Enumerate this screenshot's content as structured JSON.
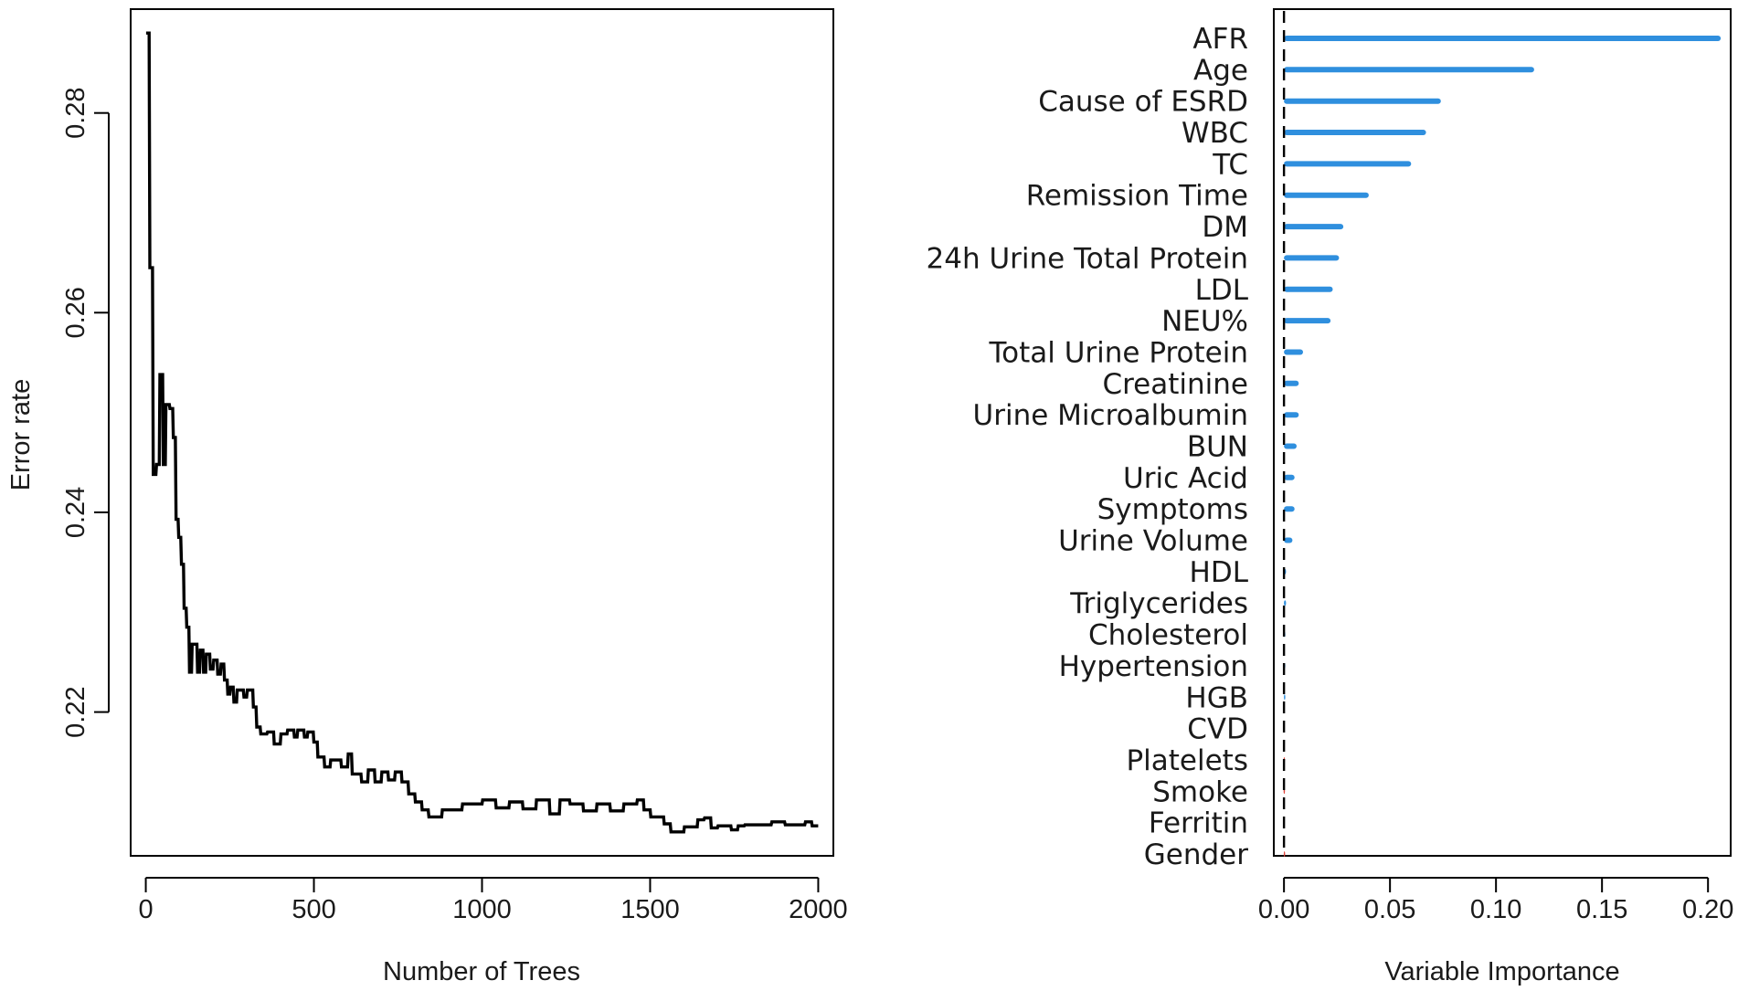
{
  "chart_data": [
    {
      "type": "line",
      "xlabel": "Number of Trees",
      "ylabel": "Error rate",
      "xlim": [
        -45,
        2045
      ],
      "ylim": [
        0.2056,
        0.2904
      ],
      "x_ticks": [
        "0",
        "500",
        "1000",
        "1500",
        "2000"
      ],
      "y_ticks": [
        "0.22",
        "0.24",
        "0.26",
        "0.28"
      ],
      "series": [
        {
          "color": "#000000",
          "points": [
            [
              1,
              0.288
            ],
            [
              10,
              0.288
            ],
            [
              12,
              0.2645
            ],
            [
              20,
              0.2645
            ],
            [
              22,
              0.2438
            ],
            [
              30,
              0.2438
            ],
            [
              32,
              0.2448
            ],
            [
              40,
              0.2448
            ],
            [
              42,
              0.2538
            ],
            [
              50,
              0.2538
            ],
            [
              52,
              0.2448
            ],
            [
              58,
              0.2448
            ],
            [
              60,
              0.2508
            ],
            [
              70,
              0.2508
            ],
            [
              72,
              0.2504
            ],
            [
              80,
              0.2504
            ],
            [
              82,
              0.2475
            ],
            [
              88,
              0.2475
            ],
            [
              90,
              0.2393
            ],
            [
              96,
              0.2393
            ],
            [
              98,
              0.2375
            ],
            [
              104,
              0.2375
            ],
            [
              106,
              0.2348
            ],
            [
              112,
              0.2348
            ],
            [
              114,
              0.2304
            ],
            [
              120,
              0.2304
            ],
            [
              122,
              0.2285
            ],
            [
              128,
              0.2285
            ],
            [
              130,
              0.224
            ],
            [
              136,
              0.224
            ],
            [
              138,
              0.2268
            ],
            [
              152,
              0.2268
            ],
            [
              154,
              0.224
            ],
            [
              160,
              0.224
            ],
            [
              162,
              0.2262
            ],
            [
              170,
              0.2262
            ],
            [
              172,
              0.224
            ],
            [
              178,
              0.224
            ],
            [
              180,
              0.2258
            ],
            [
              190,
              0.2258
            ],
            [
              192,
              0.2243
            ],
            [
              200,
              0.2243
            ],
            [
              202,
              0.2252
            ],
            [
              212,
              0.2252
            ],
            [
              214,
              0.2238
            ],
            [
              222,
              0.2238
            ],
            [
              224,
              0.2248
            ],
            [
              232,
              0.2248
            ],
            [
              234,
              0.2232
            ],
            [
              242,
              0.2232
            ],
            [
              244,
              0.2218
            ],
            [
              250,
              0.2218
            ],
            [
              252,
              0.2225
            ],
            [
              260,
              0.2225
            ],
            [
              262,
              0.221
            ],
            [
              270,
              0.221
            ],
            [
              272,
              0.2222
            ],
            [
              290,
              0.2222
            ],
            [
              292,
              0.2215
            ],
            [
              300,
              0.2215
            ],
            [
              302,
              0.2222
            ],
            [
              318,
              0.2222
            ],
            [
              320,
              0.2205
            ],
            [
              328,
              0.2205
            ],
            [
              330,
              0.2185
            ],
            [
              340,
              0.2185
            ],
            [
              342,
              0.2178
            ],
            [
              360,
              0.2178
            ],
            [
              362,
              0.218
            ],
            [
              380,
              0.218
            ],
            [
              382,
              0.2168
            ],
            [
              400,
              0.2168
            ],
            [
              402,
              0.2178
            ],
            [
              420,
              0.2178
            ],
            [
              422,
              0.2182
            ],
            [
              440,
              0.2182
            ],
            [
              442,
              0.2175
            ],
            [
              450,
              0.2175
            ],
            [
              452,
              0.2182
            ],
            [
              470,
              0.2182
            ],
            [
              472,
              0.2175
            ],
            [
              480,
              0.2175
            ],
            [
              482,
              0.218
            ],
            [
              498,
              0.218
            ],
            [
              500,
              0.217
            ],
            [
              510,
              0.217
            ],
            [
              512,
              0.2155
            ],
            [
              530,
              0.2155
            ],
            [
              532,
              0.2145
            ],
            [
              548,
              0.2145
            ],
            [
              550,
              0.2152
            ],
            [
              580,
              0.2152
            ],
            [
              582,
              0.2145
            ],
            [
              600,
              0.2145
            ],
            [
              602,
              0.2158
            ],
            [
              612,
              0.2158
            ],
            [
              614,
              0.2138
            ],
            [
              640,
              0.2138
            ],
            [
              642,
              0.213
            ],
            [
              660,
              0.213
            ],
            [
              662,
              0.2142
            ],
            [
              680,
              0.2142
            ],
            [
              682,
              0.213
            ],
            [
              700,
              0.213
            ],
            [
              702,
              0.214
            ],
            [
              720,
              0.214
            ],
            [
              722,
              0.2132
            ],
            [
              740,
              0.2132
            ],
            [
              742,
              0.214
            ],
            [
              760,
              0.214
            ],
            [
              762,
              0.213
            ],
            [
              780,
              0.213
            ],
            [
              782,
              0.2118
            ],
            [
              800,
              0.2118
            ],
            [
              802,
              0.211
            ],
            [
              820,
              0.211
            ],
            [
              822,
              0.2102
            ],
            [
              840,
              0.2102
            ],
            [
              842,
              0.2095
            ],
            [
              880,
              0.2095
            ],
            [
              882,
              0.2102
            ],
            [
              940,
              0.2102
            ],
            [
              942,
              0.2108
            ],
            [
              1000,
              0.2108
            ],
            [
              1002,
              0.2112
            ],
            [
              1040,
              0.2112
            ],
            [
              1042,
              0.2104
            ],
            [
              1080,
              0.2104
            ],
            [
              1082,
              0.211
            ],
            [
              1120,
              0.211
            ],
            [
              1122,
              0.2103
            ],
            [
              1160,
              0.2103
            ],
            [
              1162,
              0.2112
            ],
            [
              1200,
              0.2112
            ],
            [
              1202,
              0.2098
            ],
            [
              1230,
              0.2098
            ],
            [
              1232,
              0.2112
            ],
            [
              1260,
              0.2112
            ],
            [
              1262,
              0.2108
            ],
            [
              1300,
              0.2108
            ],
            [
              1302,
              0.2101
            ],
            [
              1340,
              0.2101
            ],
            [
              1342,
              0.2108
            ],
            [
              1380,
              0.2108
            ],
            [
              1382,
              0.2101
            ],
            [
              1420,
              0.2101
            ],
            [
              1422,
              0.2108
            ],
            [
              1460,
              0.2108
            ],
            [
              1462,
              0.2112
            ],
            [
              1480,
              0.2112
            ],
            [
              1482,
              0.2102
            ],
            [
              1500,
              0.2102
            ],
            [
              1502,
              0.2095
            ],
            [
              1540,
              0.2095
            ],
            [
              1542,
              0.2088
            ],
            [
              1560,
              0.2088
            ],
            [
              1562,
              0.208
            ],
            [
              1600,
              0.208
            ],
            [
              1602,
              0.2085
            ],
            [
              1640,
              0.2085
            ],
            [
              1642,
              0.2092
            ],
            [
              1660,
              0.2092
            ],
            [
              1662,
              0.2094
            ],
            [
              1680,
              0.2094
            ],
            [
              1682,
              0.2084
            ],
            [
              1700,
              0.2084
            ],
            [
              1702,
              0.2086
            ],
            [
              1740,
              0.2086
            ],
            [
              1742,
              0.2082
            ],
            [
              1760,
              0.2082
            ],
            [
              1762,
              0.2086
            ],
            [
              1780,
              0.2086
            ],
            [
              1782,
              0.2087
            ],
            [
              1860,
              0.2087
            ],
            [
              1862,
              0.209
            ],
            [
              1900,
              0.209
            ],
            [
              1902,
              0.2087
            ],
            [
              1960,
              0.2087
            ],
            [
              1962,
              0.209
            ],
            [
              1980,
              0.209
            ],
            [
              1982,
              0.2086
            ],
            [
              2000,
              0.2086
            ]
          ]
        }
      ]
    },
    {
      "type": "bar",
      "orientation": "horizontal",
      "xlabel": "Variable Importance",
      "xlim": [
        -0.0048,
        0.2107
      ],
      "x_ticks": [
        "0.00",
        "0.05",
        "0.10",
        "0.15",
        "0.20"
      ],
      "reference_line": {
        "x": 0,
        "style": "dashed",
        "color": "#000000"
      },
      "positive_color": "#2f8fde",
      "negative_color": "#e0463c",
      "categories": [
        "AFR",
        "Age",
        "Cause of ESRD",
        "WBC",
        "TC",
        "Remission Time",
        "DM",
        "24h Urine Total Protein",
        "LDL",
        "NEU%",
        "Total Urine Protein",
        "Creatinine",
        "Urine Microalbumin",
        "BUN",
        "Uric Acid",
        "Symptoms",
        "Urine Volume",
        "HDL",
        "Triglycerides",
        "Cholesterol",
        "Hypertension",
        "HGB",
        "CVD",
        "Platelets",
        "Smoke",
        "Ferritin",
        "Gender"
      ],
      "values": [
        0.206,
        0.118,
        0.074,
        0.067,
        0.06,
        0.04,
        0.028,
        0.026,
        0.023,
        0.022,
        0.009,
        0.007,
        0.007,
        0.006,
        0.005,
        0.005,
        0.004,
        0.001,
        0.001,
        0.0005,
        0.0002,
        0.0002,
        -0.0005,
        -0.0002,
        -0.0002,
        -0.0004,
        -0.0001
      ]
    }
  ]
}
